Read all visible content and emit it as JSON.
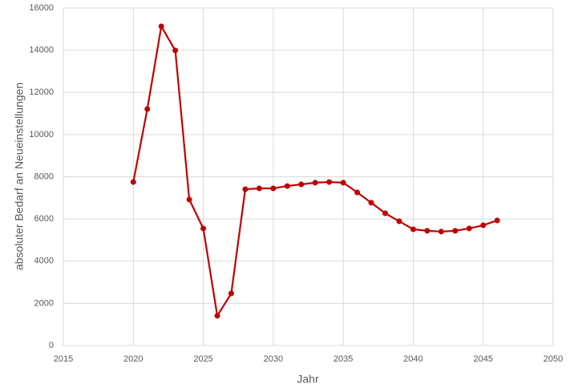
{
  "chart_data": {
    "type": "line",
    "x_label": "Jahr",
    "y_label": "absoluter Bedarf an Neueinstellungen",
    "x": [
      2020,
      2021,
      2022,
      2023,
      2024,
      2025,
      2026,
      2027,
      2028,
      2029,
      2030,
      2031,
      2032,
      2033,
      2034,
      2035,
      2036,
      2037,
      2038,
      2039,
      2040,
      2041,
      2042,
      2043,
      2044,
      2045,
      2046
    ],
    "series": [
      {
        "color": "#c00000",
        "values": [
          7750,
          11210,
          15130,
          13990,
          6920,
          5550,
          1410,
          2470,
          7410,
          7450,
          7450,
          7560,
          7640,
          7720,
          7750,
          7720,
          7260,
          6770,
          6270,
          5890,
          5510,
          5440,
          5400,
          5440,
          5550,
          5700,
          5930
        ]
      }
    ],
    "xlim": [
      2015,
      2050
    ],
    "xticks": [
      2015,
      2020,
      2025,
      2030,
      2035,
      2040,
      2045,
      2050
    ],
    "ylim": [
      0,
      16000
    ],
    "yticks": [
      0,
      2000,
      4000,
      6000,
      8000,
      10000,
      12000,
      14000,
      16000
    ],
    "grid": true
  }
}
